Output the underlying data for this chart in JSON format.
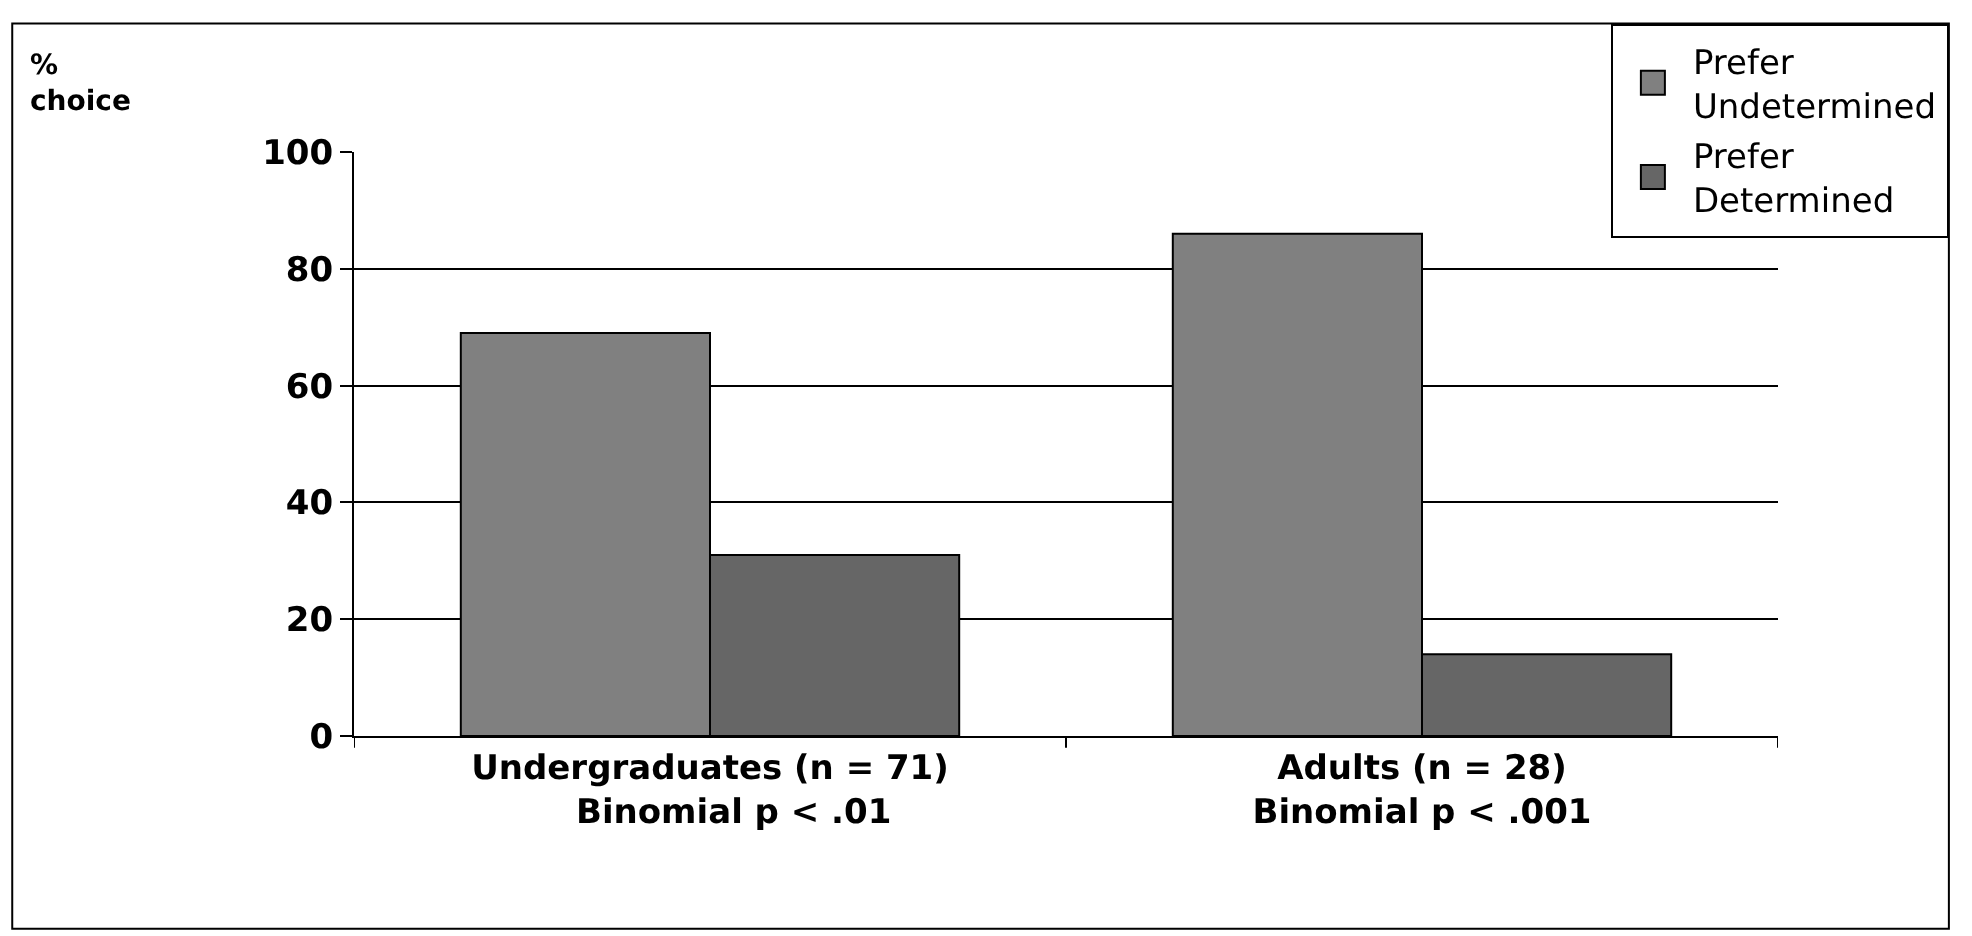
{
  "chart_data": {
    "type": "bar",
    "ylabel": "%\nchoice",
    "categories": [
      "Undergraduates (n = 71)\n    Binomial p < .01",
      "Adults (n = 28)\nBinomial p < .001"
    ],
    "series": [
      {
        "name": "Prefer\nUndetermined",
        "color": "#808080",
        "values": [
          69,
          86
        ]
      },
      {
        "name": "Prefer\nDetermined",
        "color": "#666666",
        "values": [
          31,
          14
        ]
      }
    ],
    "ylim": [
      0,
      100
    ],
    "yticks": [
      0,
      20,
      40,
      60,
      80,
      100
    ],
    "grid": "y",
    "legend": "top right"
  }
}
